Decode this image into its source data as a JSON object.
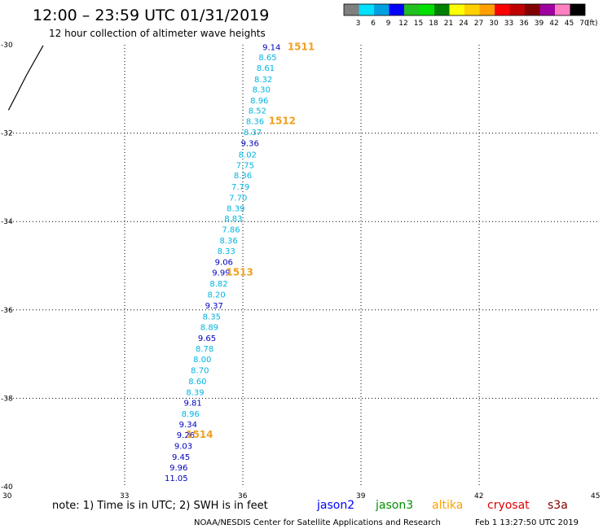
{
  "header": {
    "title": "12:00 – 23:59 UTC 01/31/2019",
    "subtitle": "12 hour collection of altimeter wave heights"
  },
  "colorbar": {
    "labels": [
      "3",
      "6",
      "9",
      "12",
      "15",
      "18",
      "21",
      "24",
      "27",
      "30",
      "33",
      "36",
      "39",
      "42",
      "45",
      "70"
    ],
    "unit": "(ft)",
    "colors": [
      "#808080",
      "#00e0ff",
      "#00a0e0",
      "#0000ff",
      "#20c020",
      "#00e000",
      "#008000",
      "#ffff00",
      "#ffd000",
      "#ffa000",
      "#ff0000",
      "#c00000",
      "#800000",
      "#a000a0",
      "#ff80c0",
      "#000000"
    ]
  },
  "note": "note: 1) Time is in UTC; 2) SWH is in feet",
  "satellites": [
    {
      "name": "jason2",
      "color": "#0000ff"
    },
    {
      "name": "jason3",
      "color": "#009000"
    },
    {
      "name": "altika",
      "color": "#ffa000"
    },
    {
      "name": "cryosat",
      "color": "#e00000"
    },
    {
      "name": "s3a",
      "color": "#800000"
    }
  ],
  "footer": {
    "left": "NOAA/NESDIS Center for Satellite Applications and Research",
    "right": "Feb  1 13:27:50 UTC 2019"
  },
  "chart_data": {
    "type": "scatter",
    "x_ticks": [
      "30",
      "33",
      "36",
      "39",
      "42",
      "45"
    ],
    "y_ticks": [
      "-30",
      "-32",
      "-34",
      "-36",
      "-38",
      "-40"
    ],
    "xlim": [
      30,
      45
    ],
    "ylim": [
      -40,
      -30
    ],
    "grid": true,
    "series_colors": {
      "light": "#00b4e0",
      "dark": "#0000c0"
    },
    "points": [
      {
        "x": 36.73,
        "y": -30.05,
        "v": "9.14",
        "c": "dark"
      },
      {
        "x": 36.63,
        "y": -30.28,
        "v": "8.65",
        "c": "light"
      },
      {
        "x": 36.58,
        "y": -30.52,
        "v": "8.61",
        "c": "light"
      },
      {
        "x": 36.52,
        "y": -30.77,
        "v": "8.32",
        "c": "light"
      },
      {
        "x": 36.47,
        "y": -31.0,
        "v": "8.30",
        "c": "light"
      },
      {
        "x": 36.42,
        "y": -31.25,
        "v": "8.96",
        "c": "light"
      },
      {
        "x": 36.37,
        "y": -31.48,
        "v": "8.52",
        "c": "light"
      },
      {
        "x": 36.31,
        "y": -31.72,
        "v": "8.36",
        "c": "light"
      },
      {
        "x": 36.25,
        "y": -31.97,
        "v": "8.37",
        "c": "light"
      },
      {
        "x": 36.18,
        "y": -32.22,
        "v": "9.36",
        "c": "dark"
      },
      {
        "x": 36.12,
        "y": -32.48,
        "v": "8.02",
        "c": "light"
      },
      {
        "x": 36.06,
        "y": -32.72,
        "v": "7.75",
        "c": "light"
      },
      {
        "x": 36.0,
        "y": -32.95,
        "v": "8.36",
        "c": "light"
      },
      {
        "x": 35.94,
        "y": -33.2,
        "v": "7.79",
        "c": "light"
      },
      {
        "x": 35.88,
        "y": -33.45,
        "v": "7.70",
        "c": "light"
      },
      {
        "x": 35.82,
        "y": -33.69,
        "v": "8.39",
        "c": "light"
      },
      {
        "x": 35.76,
        "y": -33.92,
        "v": "8.83",
        "c": "light"
      },
      {
        "x": 35.7,
        "y": -34.17,
        "v": "7.86",
        "c": "light"
      },
      {
        "x": 35.64,
        "y": -34.42,
        "v": "8.36",
        "c": "light"
      },
      {
        "x": 35.58,
        "y": -34.66,
        "v": "8.33",
        "c": "light"
      },
      {
        "x": 35.52,
        "y": -34.91,
        "v": "9.06",
        "c": "dark"
      },
      {
        "x": 35.45,
        "y": -35.15,
        "v": "9.99",
        "c": "dark"
      },
      {
        "x": 35.39,
        "y": -35.4,
        "v": "8.82",
        "c": "light"
      },
      {
        "x": 35.33,
        "y": -35.64,
        "v": "8.20",
        "c": "light"
      },
      {
        "x": 35.27,
        "y": -35.89,
        "v": "9.37",
        "c": "dark"
      },
      {
        "x": 35.21,
        "y": -36.14,
        "v": "8.35",
        "c": "light"
      },
      {
        "x": 35.15,
        "y": -36.38,
        "v": "8.89",
        "c": "light"
      },
      {
        "x": 35.09,
        "y": -36.63,
        "v": "9.65",
        "c": "dark"
      },
      {
        "x": 35.03,
        "y": -36.87,
        "v": "8.78",
        "c": "light"
      },
      {
        "x": 34.97,
        "y": -37.11,
        "v": "8.00",
        "c": "light"
      },
      {
        "x": 34.91,
        "y": -37.36,
        "v": "8.70",
        "c": "light"
      },
      {
        "x": 34.85,
        "y": -37.61,
        "v": "8.60",
        "c": "light"
      },
      {
        "x": 34.79,
        "y": -37.85,
        "v": "8.39",
        "c": "light"
      },
      {
        "x": 34.73,
        "y": -38.09,
        "v": "9.81",
        "c": "dark"
      },
      {
        "x": 34.67,
        "y": -38.34,
        "v": "8.96",
        "c": "light"
      },
      {
        "x": 34.61,
        "y": -38.58,
        "v": "9.34",
        "c": "dark"
      },
      {
        "x": 34.55,
        "y": -38.82,
        "v": "9.26",
        "c": "dark"
      },
      {
        "x": 34.49,
        "y": -39.07,
        "v": "9.03",
        "c": "dark"
      },
      {
        "x": 34.43,
        "y": -39.32,
        "v": "9.45",
        "c": "dark"
      },
      {
        "x": 34.37,
        "y": -39.56,
        "v": "9.96",
        "c": "dark"
      },
      {
        "x": 34.31,
        "y": -39.8,
        "v": "11.05",
        "c": "dark"
      }
    ],
    "pass_labels": [
      {
        "x": 37.48,
        "y": -30.05,
        "text": "1511"
      },
      {
        "x": 37.0,
        "y": -31.72,
        "text": "1512"
      },
      {
        "x": 35.92,
        "y": -35.15,
        "text": "1513"
      },
      {
        "x": 34.9,
        "y": -38.82,
        "text": "1514"
      }
    ],
    "coastline": [
      [
        30.05,
        -31.48
      ],
      [
        30.3,
        -31.05
      ],
      [
        30.5,
        -30.7
      ],
      [
        30.72,
        -30.35
      ],
      [
        30.93,
        -30.02
      ]
    ]
  }
}
